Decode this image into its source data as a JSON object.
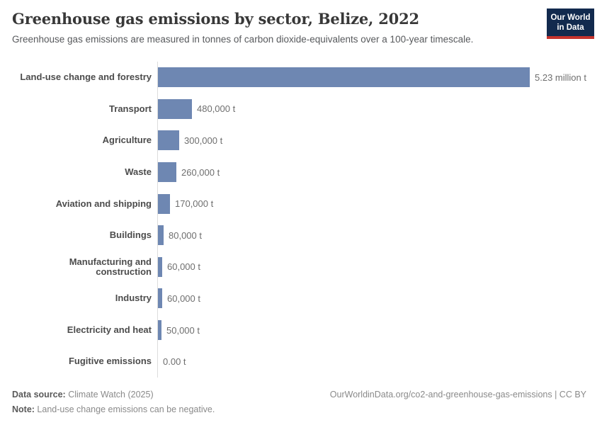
{
  "header": {
    "title": "Greenhouse gas emissions by sector, Belize, 2022",
    "subtitle": "Greenhouse gas emissions are measured in tonnes of carbon dioxide-equivalents over a 100-year timescale.",
    "logo": {
      "line1": "Our World",
      "line2": "in Data"
    }
  },
  "chart_data": {
    "type": "bar",
    "orientation": "horizontal",
    "title": "Greenhouse gas emissions by sector, Belize, 2022",
    "categories": [
      "Land-use change and forestry",
      "Transport",
      "Agriculture",
      "Waste",
      "Aviation and shipping",
      "Buildings",
      "Manufacturing and construction",
      "Industry",
      "Electricity and heat",
      "Fugitive emissions"
    ],
    "values": [
      5230000,
      480000,
      300000,
      260000,
      170000,
      80000,
      60000,
      60000,
      50000,
      0
    ],
    "value_labels": [
      "5.23 million t",
      "480,000 t",
      "300,000 t",
      "260,000 t",
      "170,000 t",
      "80,000 t",
      "60,000 t",
      "60,000 t",
      "50,000 t",
      "0.00 t"
    ],
    "xlim": [
      0,
      5230000
    ],
    "ylabel": "",
    "xlabel": "",
    "grid": false,
    "legend": false,
    "bar_color": "#6e87b2",
    "axis_line_color": "#dcdcdc"
  },
  "footer": {
    "datasource_label": "Data source:",
    "datasource_value": " Climate Watch (2025)",
    "note_label": "Note:",
    "note_value": " Land-use change emissions can be negative.",
    "url_text": "OurWorldinData.org/co2-and-greenhouse-gas-emissions | CC BY"
  },
  "colors": {
    "logo_bg": "#122a4e",
    "logo_accent": "#c5332d",
    "title_text": "#383838",
    "subtitle_text": "#57595c",
    "category_label": "#4c4c4c",
    "value_label": "#6e6e6e"
  }
}
